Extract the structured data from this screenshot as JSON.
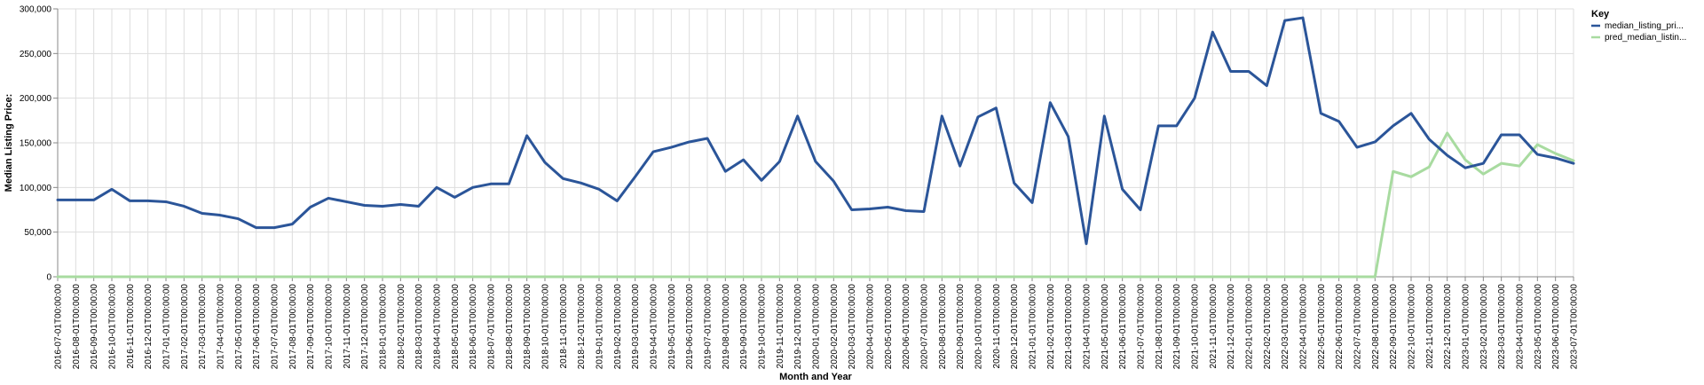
{
  "chart_data": {
    "type": "line",
    "xlabel": "Month and Year",
    "ylabel": "Median Listing Price:",
    "ylim": [
      0,
      300000
    ],
    "yticks": [
      "0",
      "50,000",
      "100,000",
      "150,000",
      "200,000",
      "250,000",
      "300,000"
    ],
    "grid": true,
    "legend_position": "top-right",
    "legend_title": "Key",
    "categories": [
      "2016-07-01T00:00:00",
      "2016-08-01T00:00:00",
      "2016-09-01T00:00:00",
      "2016-10-01T00:00:00",
      "2016-11-01T00:00:00",
      "2016-12-01T00:00:00",
      "2017-01-01T00:00:00",
      "2017-02-01T00:00:00",
      "2017-03-01T00:00:00",
      "2017-04-01T00:00:00",
      "2017-05-01T00:00:00",
      "2017-06-01T00:00:00",
      "2017-07-01T00:00:00",
      "2017-08-01T00:00:00",
      "2017-09-01T00:00:00",
      "2017-10-01T00:00:00",
      "2017-11-01T00:00:00",
      "2017-12-01T00:00:00",
      "2018-01-01T00:00:00",
      "2018-02-01T00:00:00",
      "2018-03-01T00:00:00",
      "2018-04-01T00:00:00",
      "2018-05-01T00:00:00",
      "2018-06-01T00:00:00",
      "2018-07-01T00:00:00",
      "2018-08-01T00:00:00",
      "2018-09-01T00:00:00",
      "2018-10-01T00:00:00",
      "2018-11-01T00:00:00",
      "2018-12-01T00:00:00",
      "2019-01-01T00:00:00",
      "2019-02-01T00:00:00",
      "2019-03-01T00:00:00",
      "2019-04-01T00:00:00",
      "2019-05-01T00:00:00",
      "2019-06-01T00:00:00",
      "2019-07-01T00:00:00",
      "2019-08-01T00:00:00",
      "2019-09-01T00:00:00",
      "2019-10-01T00:00:00",
      "2019-11-01T00:00:00",
      "2019-12-01T00:00:00",
      "2020-01-01T00:00:00",
      "2020-02-01T00:00:00",
      "2020-03-01T00:00:00",
      "2020-04-01T00:00:00",
      "2020-05-01T00:00:00",
      "2020-06-01T00:00:00",
      "2020-07-01T00:00:00",
      "2020-08-01T00:00:00",
      "2020-09-01T00:00:00",
      "2020-10-01T00:00:00",
      "2020-11-01T00:00:00",
      "2020-12-01T00:00:00",
      "2021-01-01T00:00:00",
      "2021-02-01T00:00:00",
      "2021-03-01T00:00:00",
      "2021-04-01T00:00:00",
      "2021-05-01T00:00:00",
      "2021-06-01T00:00:00",
      "2021-07-01T00:00:00",
      "2021-08-01T00:00:00",
      "2021-09-01T00:00:00",
      "2021-10-01T00:00:00",
      "2021-11-01T00:00:00",
      "2021-12-01T00:00:00",
      "2022-01-01T00:00:00",
      "2022-02-01T00:00:00",
      "2022-03-01T00:00:00",
      "2022-04-01T00:00:00",
      "2022-05-01T00:00:00",
      "2022-06-01T00:00:00",
      "2022-07-01T00:00:00",
      "2022-08-01T00:00:00",
      "2022-09-01T00:00:00",
      "2022-10-01T00:00:00",
      "2022-11-01T00:00:00",
      "2022-12-01T00:00:00",
      "2023-01-01T00:00:00",
      "2023-02-01T00:00:00",
      "2023-03-01T00:00:00",
      "2023-04-01T00:00:00",
      "2023-05-01T00:00:00",
      "2023-06-01T00:00:00",
      "2023-07-01T00:00:00"
    ],
    "series": [
      {
        "name": "median_listing_pri...",
        "color": "#2b5599",
        "values": [
          86000,
          86000,
          86000,
          98000,
          85000,
          85000,
          84000,
          79000,
          71000,
          69000,
          65000,
          55000,
          55000,
          59000,
          78000,
          88000,
          84000,
          80000,
          79000,
          81000,
          79000,
          100000,
          89000,
          100000,
          104000,
          104000,
          158000,
          128000,
          110000,
          105000,
          98000,
          85000,
          112000,
          140000,
          145000,
          151000,
          155000,
          118000,
          131000,
          108000,
          129000,
          180000,
          129000,
          107000,
          75000,
          76000,
          78000,
          74000,
          73000,
          180000,
          124000,
          179000,
          189000,
          105000,
          83000,
          195000,
          157000,
          37000,
          180000,
          98000,
          75000,
          169000,
          169000,
          200000,
          274000,
          230000,
          230000,
          214000,
          287000,
          290000,
          183000,
          174000,
          145000,
          151000,
          169000,
          183000,
          154000,
          136000,
          122000,
          127000,
          159000,
          159000,
          137000,
          133000,
          127000
        ]
      },
      {
        "name": "pred_median_listin...",
        "color": "#a8dba0",
        "values": [
          0,
          0,
          0,
          0,
          0,
          0,
          0,
          0,
          0,
          0,
          0,
          0,
          0,
          0,
          0,
          0,
          0,
          0,
          0,
          0,
          0,
          0,
          0,
          0,
          0,
          0,
          0,
          0,
          0,
          0,
          0,
          0,
          0,
          0,
          0,
          0,
          0,
          0,
          0,
          0,
          0,
          0,
          0,
          0,
          0,
          0,
          0,
          0,
          0,
          0,
          0,
          0,
          0,
          0,
          0,
          0,
          0,
          0,
          0,
          0,
          0,
          0,
          0,
          0,
          0,
          0,
          0,
          0,
          0,
          0,
          0,
          0,
          0,
          0,
          118000,
          112000,
          123000,
          161000,
          131000,
          115000,
          127000,
          124000,
          148000,
          138000,
          130000
        ]
      }
    ]
  }
}
